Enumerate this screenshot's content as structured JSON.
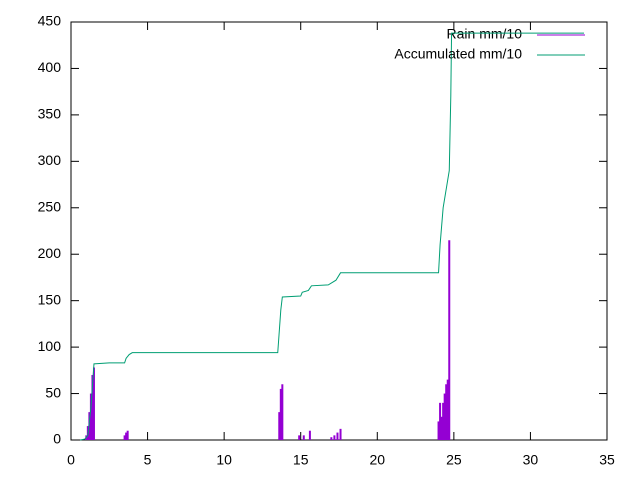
{
  "chart_data": {
    "type": "line",
    "series": [
      {
        "name": "Rain mm/10",
        "color": "#9400d3",
        "style": "impulses",
        "x": [
          1.0,
          1.1,
          1.2,
          1.3,
          1.4,
          1.5,
          3.5,
          3.6,
          3.7,
          13.6,
          13.7,
          13.8,
          14.9,
          15.2,
          15.6,
          17.0,
          17.2,
          17.4,
          17.6,
          24.0,
          24.1,
          24.2,
          24.3,
          24.4,
          24.5,
          24.6,
          24.7
        ],
        "values": [
          5,
          15,
          30,
          50,
          70,
          78,
          5,
          8,
          10,
          30,
          55,
          60,
          5,
          5,
          10,
          3,
          5,
          8,
          12,
          20,
          40,
          25,
          40,
          50,
          60,
          65,
          215
        ]
      },
      {
        "name": "Accumulated mm/10",
        "color": "#009e73",
        "style": "lines",
        "x": [
          0.6,
          0.9,
          1.1,
          1.3,
          1.5,
          2.5,
          3.5,
          3.6,
          3.8,
          4.0,
          13.5,
          13.7,
          13.8,
          15.0,
          15.1,
          15.5,
          15.7,
          16.8,
          17.3,
          17.6,
          24.0,
          24.1,
          24.3,
          24.7,
          24.8,
          24.85,
          33.5
        ],
        "values": [
          0,
          1,
          5,
          35,
          82,
          83,
          83,
          88,
          92,
          94,
          94,
          140,
          154,
          155,
          159,
          161,
          166,
          167,
          172,
          180,
          180,
          210,
          250,
          290,
          370,
          438,
          438
        ]
      }
    ],
    "xlim": [
      0,
      35
    ],
    "xticks": [
      0,
      5,
      10,
      15,
      20,
      25,
      30,
      35
    ],
    "ylim": [
      0,
      450
    ],
    "yticks": [
      0,
      50,
      100,
      150,
      200,
      250,
      300,
      350,
      400,
      450
    ],
    "legend": "top-right"
  }
}
